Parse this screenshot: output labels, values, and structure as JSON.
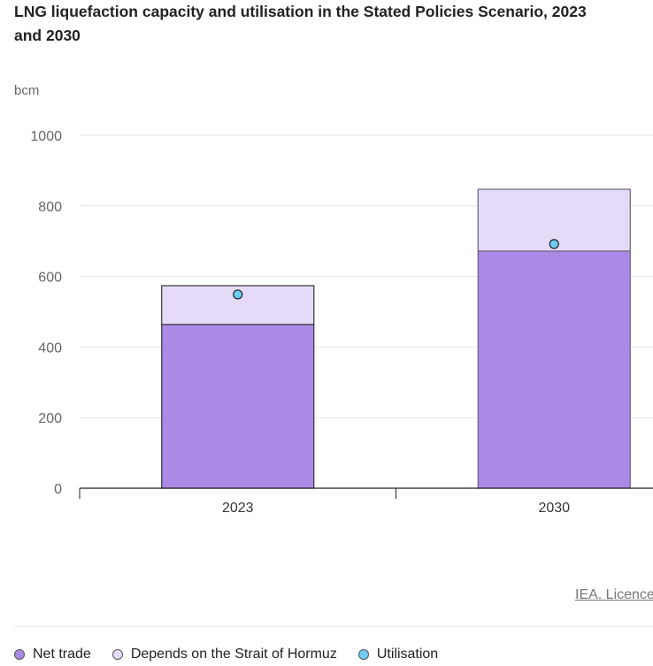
{
  "chart_data": {
    "type": "bar",
    "stacked": true,
    "title": "LNG liquefaction capacity and utilisation in the Stated Policies Scenario, 2023 and 2030",
    "ylabel": "bcm",
    "ylim": [
      0,
      1000
    ],
    "yticks": [
      0,
      200,
      400,
      600,
      800,
      1000
    ],
    "categories": [
      "2023",
      "2030"
    ],
    "series": [
      {
        "name": "Net trade",
        "type": "bar",
        "color": "#ab89e6",
        "values": [
          464,
          672
        ]
      },
      {
        "name": "Depends on the Strait of Hormuz",
        "type": "bar",
        "color": "#e5dbf8",
        "values": [
          110,
          175
        ]
      },
      {
        "name": "Utilisation",
        "type": "point",
        "color": "#6fcdf5",
        "values": [
          549,
          692
        ]
      }
    ],
    "grid": true,
    "legend": "bottom"
  },
  "credit": "IEA. Licence"
}
